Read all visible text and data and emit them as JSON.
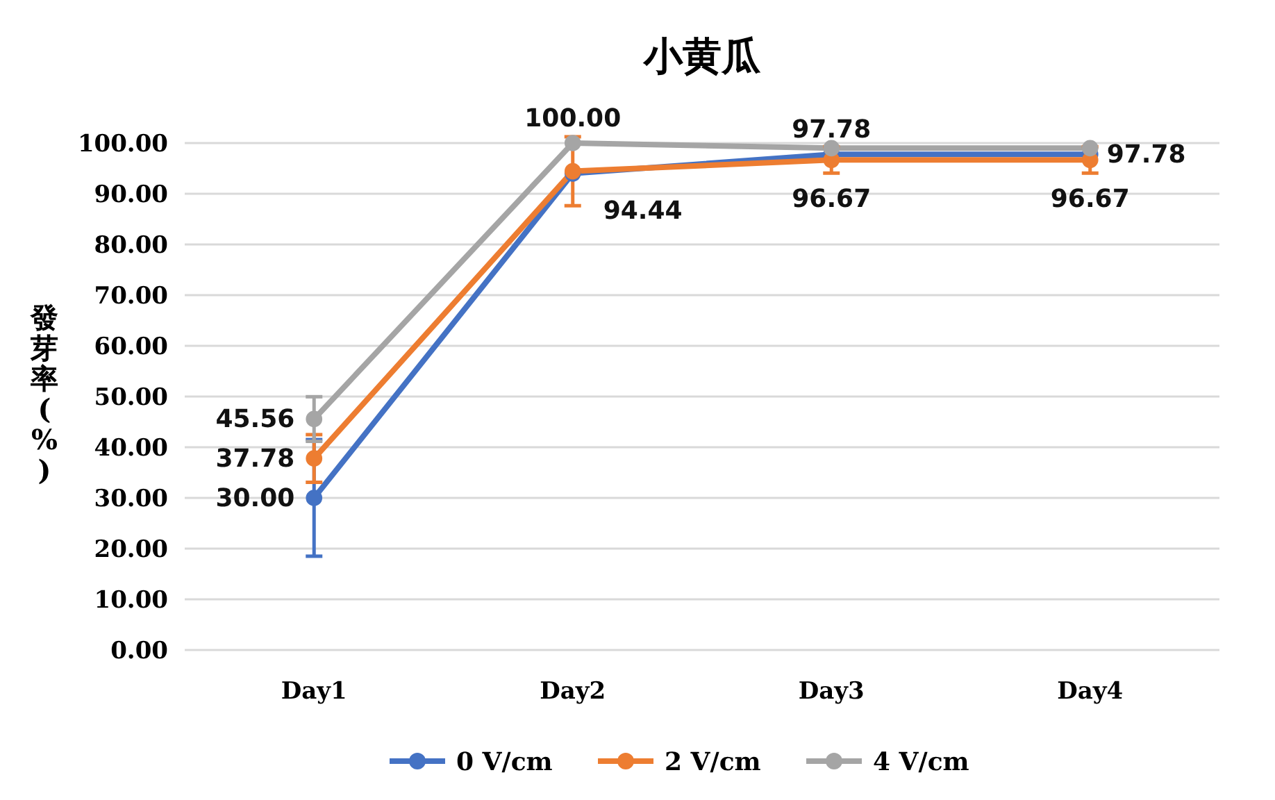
{
  "chart_data": {
    "type": "line",
    "title": "小黄瓜",
    "ylabel": "發芽率(%)",
    "categories": [
      "Day1",
      "Day2",
      "Day3",
      "Day4"
    ],
    "series": [
      {
        "name": "0 V/cm",
        "color": "#4472c4",
        "values": [
          30,
          94,
          97.78,
          97.78
        ],
        "errors": [
          11.5,
          null,
          null,
          null
        ],
        "value_labels": [
          "30.00",
          null,
          "97.78",
          "97.78"
        ]
      },
      {
        "name": "2 V/cm",
        "color": "#ed7d31",
        "values": [
          37.78,
          94.44,
          96.67,
          96.67
        ],
        "errors": [
          4.7,
          6.8,
          2.6,
          2.6
        ],
        "value_labels": [
          "37.78",
          "94.44",
          "96.67",
          "96.67"
        ]
      },
      {
        "name": "4 V/cm",
        "color": "#a5a5a5",
        "values": [
          45.56,
          100,
          99,
          99
        ],
        "errors": [
          4.4,
          null,
          null,
          null
        ],
        "value_labels": [
          "45.56",
          "100.00",
          null,
          null
        ]
      }
    ],
    "ylim": [
      0,
      100
    ],
    "yticks": [
      {
        "value": 0,
        "label": "0.00"
      },
      {
        "value": 10,
        "label": "10.00"
      },
      {
        "value": 20,
        "label": "20.00"
      },
      {
        "value": 30,
        "label": "30.00"
      },
      {
        "value": 40,
        "label": "40.00"
      },
      {
        "value": 50,
        "label": "50.00"
      },
      {
        "value": 60,
        "label": "60.00"
      },
      {
        "value": 70,
        "label": "70.00"
      },
      {
        "value": 80,
        "label": "80.00"
      },
      {
        "value": 90,
        "label": "90.00"
      },
      {
        "value": 100,
        "label": "100.00"
      }
    ],
    "grid": "y",
    "legend": "bottom",
    "marker": "circle",
    "line_style": "solid"
  }
}
